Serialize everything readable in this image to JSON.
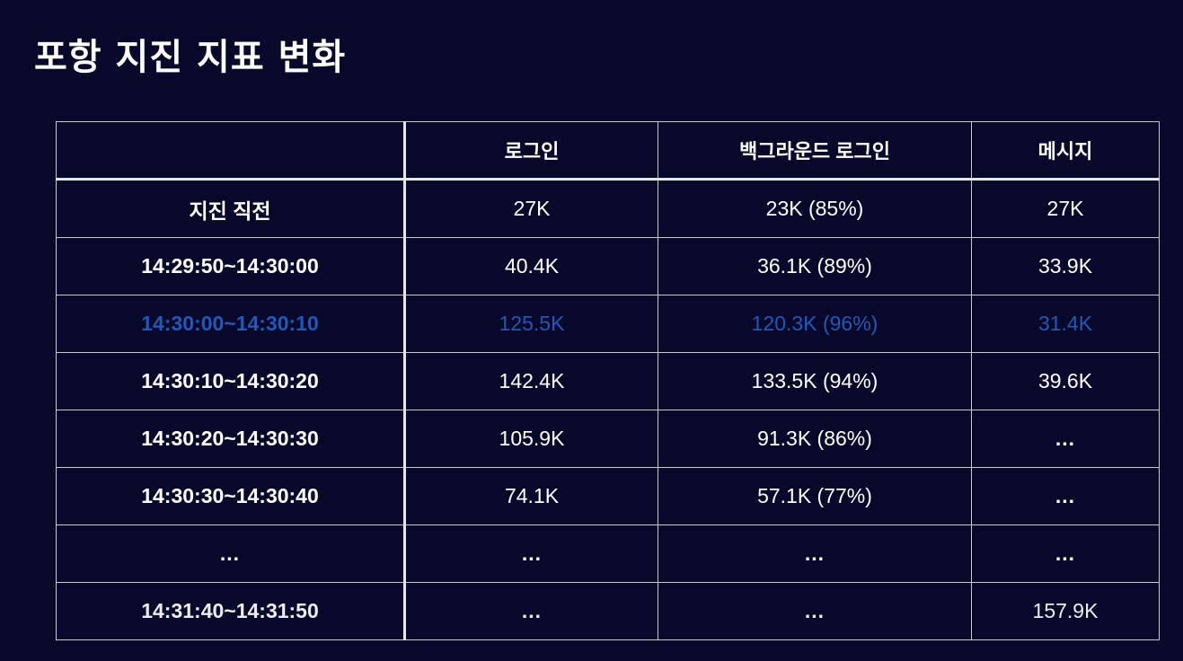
{
  "title": "포항 지진 지표 변화",
  "table": {
    "headers": [
      "",
      "로그인",
      "백그라운드 로그인",
      "메시지"
    ],
    "rows": [
      {
        "cells": [
          "지진 직전",
          "27K",
          "23K (85%)",
          "27K"
        ],
        "highlight": false
      },
      {
        "cells": [
          "14:29:50~14:30:00",
          "40.4K",
          "36.1K (89%)",
          "33.9K"
        ],
        "highlight": false
      },
      {
        "cells": [
          "14:30:00~14:30:10",
          "125.5K",
          "120.3K (96%)",
          "31.4K"
        ],
        "highlight": true
      },
      {
        "cells": [
          "14:30:10~14:30:20",
          "142.4K",
          "133.5K (94%)",
          "39.6K"
        ],
        "highlight": false
      },
      {
        "cells": [
          "14:30:20~14:30:30",
          "105.9K",
          "91.3K (86%)",
          "..."
        ],
        "highlight": false
      },
      {
        "cells": [
          "14:30:30~14:30:40",
          "74.1K",
          "57.1K (77%)",
          "..."
        ],
        "highlight": false
      },
      {
        "cells": [
          "...",
          "...",
          "...",
          "..."
        ],
        "highlight": false
      },
      {
        "cells": [
          "14:31:40~14:31:50",
          "...",
          "...",
          "157.9K"
        ],
        "highlight": false
      }
    ]
  },
  "colors": {
    "background": "#08092a",
    "text": "#ffffff",
    "highlight_text": "#2357b8",
    "grid": "#c8c8d0"
  }
}
